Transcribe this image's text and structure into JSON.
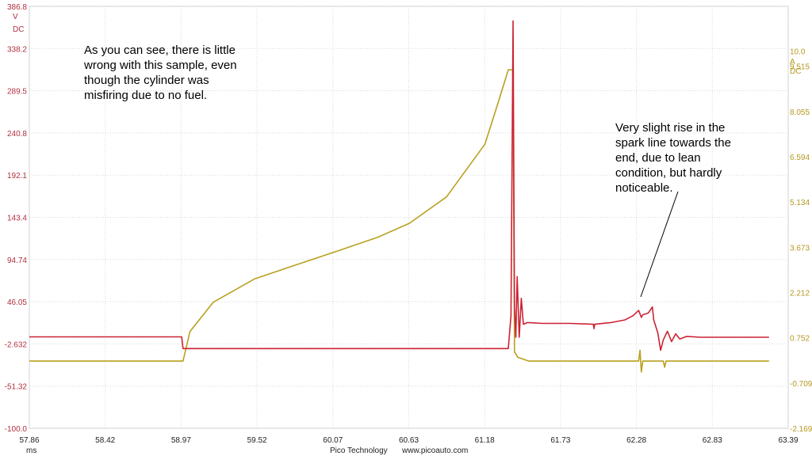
{
  "chart_data": {
    "type": "line",
    "x_unit": "ms",
    "x_ticks": [
      "57.86",
      "58.42",
      "58.97",
      "59.52",
      "60.07",
      "60.63",
      "61.18",
      "61.73",
      "62.28",
      "62.83",
      "63.39"
    ],
    "xlim": [
      57.86,
      63.39
    ],
    "left_axis": {
      "unit": "V",
      "coupling": "DC",
      "ticks": [
        "386.8",
        "338.2",
        "289.5",
        "240.8",
        "192.1",
        "143.4",
        "94.74",
        "46.05",
        "-2.632",
        "-51.32",
        "-100.0"
      ],
      "range": [
        -100.0,
        386.8
      ],
      "color": "#cc2233"
    },
    "right_axis": {
      "unit": "A",
      "coupling": "DC",
      "ticks": [
        "10.0",
        "9.515",
        "8.055",
        "6.594",
        "5.134",
        "3.673",
        "2.212",
        "0.752",
        "-0.709",
        "-2.169"
      ],
      "range": [
        -2.169,
        11.45
      ],
      "color": "#b8a020"
    },
    "grid": true,
    "series": [
      {
        "axis": "left",
        "color": "#cc2233",
        "points": [
          [
            57.86,
            5.5
          ],
          [
            58.97,
            5.5
          ],
          [
            58.98,
            -8.0
          ],
          [
            60.5,
            -8.0
          ],
          [
            61.35,
            -8.0
          ],
          [
            61.37,
            30.0
          ],
          [
            61.385,
            370.0
          ],
          [
            61.395,
            40.0
          ],
          [
            61.405,
            5.0
          ],
          [
            61.415,
            75.0
          ],
          [
            61.43,
            5.0
          ],
          [
            61.445,
            50.0
          ],
          [
            61.46,
            20.0
          ],
          [
            61.49,
            22.0
          ],
          [
            61.6,
            21.0
          ],
          [
            61.8,
            21.0
          ],
          [
            61.97,
            20.0
          ],
          [
            61.975,
            15.0
          ],
          [
            61.98,
            20.0
          ],
          [
            62.1,
            22.0
          ],
          [
            62.2,
            25.0
          ],
          [
            62.26,
            30.0
          ],
          [
            62.3,
            36.0
          ],
          [
            62.32,
            28.0
          ],
          [
            62.33,
            31.0
          ],
          [
            62.37,
            33.0
          ],
          [
            62.4,
            40.0
          ],
          [
            62.41,
            25.0
          ],
          [
            62.44,
            10.0
          ],
          [
            62.46,
            -10.0
          ],
          [
            62.48,
            2.0
          ],
          [
            62.51,
            12.0
          ],
          [
            62.54,
            0.0
          ],
          [
            62.57,
            9.0
          ],
          [
            62.6,
            3.0
          ],
          [
            62.65,
            6.0
          ],
          [
            62.75,
            5.0
          ],
          [
            63.0,
            5.0
          ],
          [
            63.25,
            5.0
          ]
        ]
      },
      {
        "axis": "right",
        "color": "#b8a020",
        "points": [
          [
            57.86,
            0.0
          ],
          [
            58.98,
            0.0
          ],
          [
            59.03,
            0.95
          ],
          [
            59.2,
            1.9
          ],
          [
            59.5,
            2.65
          ],
          [
            59.8,
            3.1
          ],
          [
            60.07,
            3.5
          ],
          [
            60.4,
            4.0
          ],
          [
            60.63,
            4.45
          ],
          [
            60.9,
            5.3
          ],
          [
            61.18,
            7.0
          ],
          [
            61.28,
            8.4
          ],
          [
            61.35,
            9.4
          ],
          [
            61.385,
            9.4
          ],
          [
            61.395,
            0.3
          ],
          [
            61.42,
            0.12
          ],
          [
            61.5,
            0.0
          ],
          [
            62.0,
            0.0
          ],
          [
            62.3,
            0.0
          ],
          [
            62.31,
            0.35
          ],
          [
            62.32,
            -0.35
          ],
          [
            62.33,
            0.0
          ],
          [
            62.48,
            0.0
          ],
          [
            62.49,
            -0.2
          ],
          [
            62.5,
            0.0
          ],
          [
            63.25,
            0.0
          ]
        ]
      }
    ]
  },
  "annotations": {
    "left_note": [
      "As you can see, there is little",
      "wrong with this sample, even",
      "though the cylinder was",
      "misfiring due to no fuel."
    ],
    "right_note": [
      "Very slight rise in the",
      "spark line towards the",
      "end, due to lean",
      "condition, but hardly",
      "noticeable."
    ]
  },
  "footer": {
    "brand": "Pico Technology",
    "url": "www.picoauto.com"
  }
}
